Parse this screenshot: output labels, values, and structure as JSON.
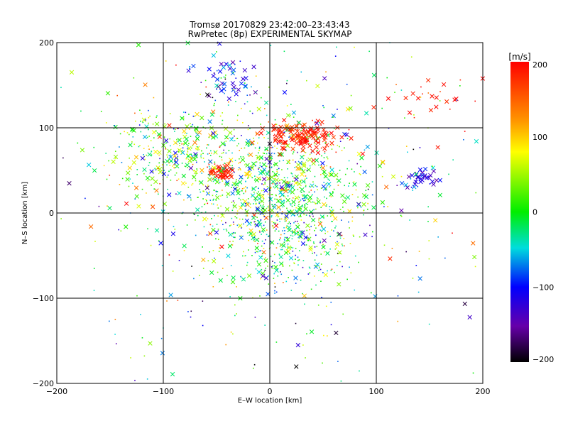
{
  "chart_data": {
    "type": "scatter",
    "title": "Tromsø 20170829 23:42:00–23:43:43",
    "subtitle": "RwPretec (8p) EXPERIMENTAL SKYMAP",
    "xlabel": "E–W location [km]",
    "ylabel": "N–S location [km]",
    "xlim": [
      -200,
      200
    ],
    "ylim": [
      -200,
      200
    ],
    "xticks": [
      -200,
      -100,
      0,
      100,
      200
    ],
    "yticks": [
      -200,
      -100,
      0,
      100,
      200
    ],
    "grid": true,
    "colorbar": {
      "label": "[m/s]",
      "range": [
        -200,
        200
      ],
      "ticks": [
        200,
        100,
        0,
        -100,
        -200
      ],
      "colormap": "rainbow"
    },
    "marker_types": [
      "small-dot",
      "x-cross"
    ],
    "clusters": [
      {
        "x": 0,
        "y": 30,
        "sx": 45,
        "sy": 40,
        "n": 900,
        "v": 10,
        "vs": 70,
        "xfrac": 0.25
      },
      {
        "x": 30,
        "y": 90,
        "sx": 18,
        "sy": 9,
        "n": 140,
        "v": 185,
        "vs": 15,
        "xfrac": 0.8
      },
      {
        "x": -45,
        "y": 48,
        "sx": 6,
        "sy": 4,
        "n": 45,
        "v": 190,
        "vs": 10,
        "xfrac": 0.8
      },
      {
        "x": 140,
        "y": 40,
        "sx": 8,
        "sy": 6,
        "n": 35,
        "v": -110,
        "vs": 25,
        "xfrac": 0.7
      },
      {
        "x": -40,
        "y": 160,
        "sx": 18,
        "sy": 15,
        "n": 60,
        "v": -110,
        "vs": 60,
        "xfrac": 0.6
      },
      {
        "x": 150,
        "y": 135,
        "sx": 22,
        "sy": 12,
        "n": 25,
        "v": 190,
        "vs": 10,
        "xfrac": 0.7
      },
      {
        "x": -90,
        "y": 70,
        "sx": 30,
        "sy": 25,
        "n": 300,
        "v": 20,
        "vs": 60,
        "xfrac": 0.3
      },
      {
        "x": 20,
        "y": -30,
        "sx": 25,
        "sy": 30,
        "n": 250,
        "v": -20,
        "vs": 60,
        "xfrac": 0.2
      },
      {
        "x": 0,
        "y": 0,
        "sx": 110,
        "sy": 110,
        "n": 420,
        "v": 0,
        "vs": 100,
        "xfrac": 0.2
      }
    ]
  }
}
